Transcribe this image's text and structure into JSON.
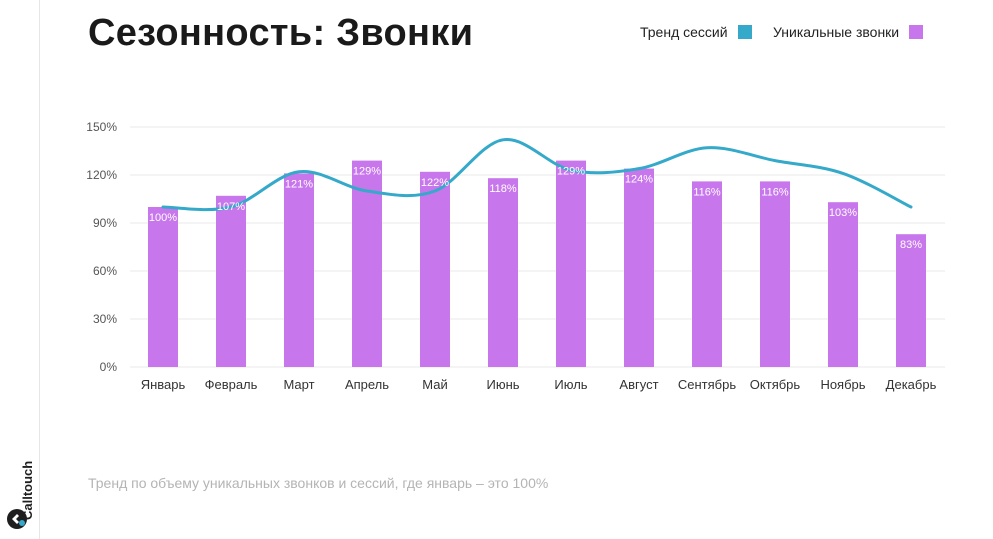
{
  "title": "Сезонность: Звонки",
  "caption": "Тренд по объему уникальных звонков и сессий, где январь – это 100%",
  "brand": {
    "name": "Calltouch"
  },
  "legend": {
    "sessions_label": "Тренд сессий",
    "calls_label": "Уникальные звонки"
  },
  "colors": {
    "line": "#34a9c9",
    "bars": "#c776ec",
    "grid": "#e8e8e8",
    "axis_text": "#555555",
    "bar_label": "#ffffff"
  },
  "chart_data": {
    "type": "bar",
    "categories": [
      "Январь",
      "Февраль",
      "Март",
      "Апрель",
      "Май",
      "Июнь",
      "Июль",
      "Август",
      "Сентябрь",
      "Октябрь",
      "Ноябрь",
      "Декабрь"
    ],
    "series": [
      {
        "name": "Уникальные звонки",
        "type": "bar",
        "values": [
          100,
          107,
          121,
          129,
          122,
          118,
          129,
          124,
          116,
          116,
          103,
          83
        ],
        "labels": [
          "100%",
          "107%",
          "121%",
          "129%",
          "122%",
          "118%",
          "129%",
          "124%",
          "116%",
          "116%",
          "103%",
          "83%"
        ]
      },
      {
        "name": "Тренд сессий",
        "type": "line",
        "values": [
          100,
          100,
          122,
          110,
          110,
          142,
          123,
          124,
          137,
          129,
          121,
          100
        ]
      }
    ],
    "yticks": [
      "0%",
      "30%",
      "60%",
      "90%",
      "120%",
      "150%"
    ],
    "ylim": [
      0,
      150
    ],
    "grid": true,
    "legend_position": "top-right"
  }
}
